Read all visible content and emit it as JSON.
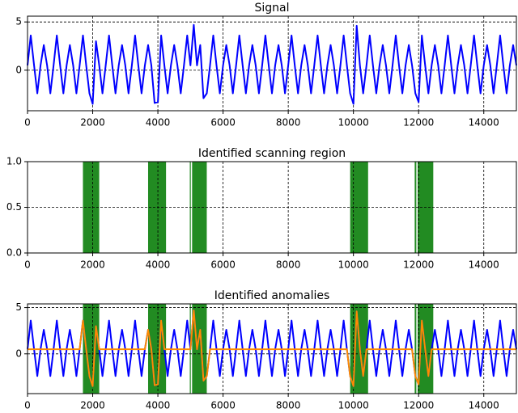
{
  "chart_data": [
    {
      "type": "line",
      "title": "Signal",
      "x": [
        0,
        100,
        200,
        300,
        400,
        500,
        600,
        700,
        800,
        900,
        1000,
        1100,
        1200,
        1300,
        1400,
        1500,
        1600,
        1700,
        1800,
        1900,
        2000,
        2100,
        2200,
        2300,
        2400,
        2500,
        2600,
        2700,
        2800,
        2900,
        3000,
        3100,
        3200,
        3300,
        3400,
        3500,
        3600,
        3700,
        3800,
        3900,
        4000,
        4100,
        4200,
        4300,
        4400,
        4500,
        4600,
        4700,
        4800,
        4900,
        5000,
        5100,
        5200,
        5300,
        5400,
        5500,
        5600,
        5700,
        5800,
        5900,
        6000,
        6100,
        6200,
        6300,
        6400,
        6500,
        6600,
        6700,
        6800,
        6900,
        7000,
        7100,
        7200,
        7300,
        7400,
        7500,
        7600,
        7700,
        7800,
        7900,
        8000,
        8100,
        8200,
        8300,
        8400,
        8500,
        8600,
        8700,
        8800,
        8900,
        9000,
        9100,
        9200,
        9300,
        9400,
        9500,
        9600,
        9700,
        9800,
        9900,
        10000,
        10100,
        10200,
        10300,
        10400,
        10500,
        10600,
        10700,
        10800,
        10900,
        11000,
        11100,
        11200,
        11300,
        11400,
        11500,
        11600,
        11700,
        11800,
        11900,
        12000,
        12100,
        12200,
        12300,
        12400,
        12500,
        12600,
        12700,
        12800,
        12900,
        13000,
        13100,
        13200,
        13300,
        13400,
        13500,
        13600,
        13700,
        13800,
        13900,
        14000,
        14100,
        14200,
        14300,
        14400,
        14500,
        14600,
        14700,
        14800,
        14900,
        15000
      ],
      "series": [
        {
          "color": "#0000ff",
          "values": [
            0.5,
            3.6,
            0.5,
            -2.4,
            0.5,
            2.6,
            0.5,
            -2.4,
            0.5,
            3.6,
            0.5,
            -2.4,
            0.5,
            2.6,
            0.5,
            -2.4,
            0.5,
            3.6,
            0.5,
            -2.4,
            -3.5,
            3.0,
            0.5,
            -2.4,
            0.5,
            3.6,
            0.5,
            -2.4,
            0.5,
            2.6,
            0.5,
            -2.4,
            0.5,
            3.6,
            0.5,
            -2.4,
            0.5,
            2.6,
            0.5,
            -3.4,
            -3.3,
            3.6,
            0.5,
            -2.4,
            0.5,
            2.6,
            0.5,
            -2.4,
            0.5,
            3.6,
            0.5,
            4.7,
            0.5,
            2.6,
            -2.9,
            -2.4,
            0.5,
            3.6,
            0.5,
            -2.4,
            0.5,
            2.6,
            0.5,
            -2.4,
            0.5,
            3.6,
            0.5,
            -2.4,
            0.5,
            2.6,
            0.5,
            -2.4,
            0.5,
            3.6,
            0.5,
            -2.4,
            0.5,
            2.6,
            0.5,
            -2.4,
            0.5,
            3.6,
            0.5,
            -2.4,
            0.5,
            2.6,
            0.5,
            -2.4,
            0.5,
            3.6,
            0.5,
            -2.4,
            0.5,
            2.6,
            0.5,
            -2.4,
            0.5,
            3.6,
            0.5,
            -2.4,
            -3.5,
            4.6,
            0.5,
            -2.4,
            0.5,
            3.6,
            0.5,
            -2.4,
            0.5,
            2.6,
            0.5,
            -2.4,
            0.5,
            3.6,
            0.5,
            -2.4,
            0.5,
            2.6,
            0.5,
            -2.4,
            -3.3,
            3.6,
            0.5,
            -2.4,
            0.5,
            2.6,
            0.5,
            -2.4,
            0.5,
            3.6,
            0.5,
            -2.4,
            0.5,
            2.6,
            0.5,
            -2.4,
            0.5,
            3.6,
            0.5,
            -2.4,
            0.5,
            2.6,
            0.5,
            -2.4,
            0.5,
            3.6,
            0.5,
            -2.4,
            0.5,
            2.6,
            0.5
          ]
        }
      ],
      "xlim": [
        0,
        15000
      ],
      "xticks": [
        0,
        2000,
        4000,
        6000,
        8000,
        10000,
        12000,
        14000
      ],
      "ylim": [
        -4.2,
        5.6
      ],
      "yticks": [
        0,
        5
      ],
      "grid": true
    },
    {
      "type": "span",
      "title": "Identified scanning region",
      "spans": [
        [
          1700,
          2200
        ],
        [
          3700,
          4250
        ],
        [
          4980,
          5010
        ],
        [
          5050,
          5500
        ],
        [
          9900,
          10450
        ],
        [
          11880,
          11930
        ],
        [
          11970,
          12450
        ]
      ],
      "span_color": "#228b22",
      "xlim": [
        0,
        15000
      ],
      "xticks": [
        0,
        2000,
        4000,
        6000,
        8000,
        10000,
        12000,
        14000
      ],
      "ylim": [
        0,
        1
      ],
      "yticks": [
        {
          "value": 0,
          "label": "0.0"
        },
        0.5,
        {
          "value": 1,
          "label": "1.0"
        }
      ],
      "grid": true
    },
    {
      "type": "line",
      "title": "Identified anomalies",
      "spans": [
        [
          1700,
          2200
        ],
        [
          3700,
          4250
        ],
        [
          4980,
          5010
        ],
        [
          5050,
          5500
        ],
        [
          9900,
          10450
        ],
        [
          11880,
          11930
        ],
        [
          11970,
          12450
        ]
      ],
      "span_color": "#228b22",
      "x": [
        0,
        100,
        200,
        300,
        400,
        500,
        600,
        700,
        800,
        900,
        1000,
        1100,
        1200,
        1300,
        1400,
        1500,
        1600,
        1700,
        1800,
        1900,
        2000,
        2100,
        2200,
        2300,
        2400,
        2500,
        2600,
        2700,
        2800,
        2900,
        3000,
        3100,
        3200,
        3300,
        3400,
        3500,
        3600,
        3700,
        3800,
        3900,
        4000,
        4100,
        4200,
        4300,
        4400,
        4500,
        4600,
        4700,
        4800,
        4900,
        5000,
        5100,
        5200,
        5300,
        5400,
        5500,
        5600,
        5700,
        5800,
        5900,
        6000,
        6100,
        6200,
        6300,
        6400,
        6500,
        6600,
        6700,
        6800,
        6900,
        7000,
        7100,
        7200,
        7300,
        7400,
        7500,
        7600,
        7700,
        7800,
        7900,
        8000,
        8100,
        8200,
        8300,
        8400,
        8500,
        8600,
        8700,
        8800,
        8900,
        9000,
        9100,
        9200,
        9300,
        9400,
        9500,
        9600,
        9700,
        9800,
        9900,
        10000,
        10100,
        10200,
        10300,
        10400,
        10500,
        10600,
        10700,
        10800,
        10900,
        11000,
        11100,
        11200,
        11300,
        11400,
        11500,
        11600,
        11700,
        11800,
        11900,
        12000,
        12100,
        12200,
        12300,
        12400,
        12500,
        12600,
        12700,
        12800,
        12900,
        13000,
        13100,
        13200,
        13300,
        13400,
        13500,
        13600,
        13700,
        13800,
        13900,
        14000,
        14100,
        14200,
        14300,
        14400,
        14500,
        14600,
        14700,
        14800,
        14900,
        15000
      ],
      "series": [
        {
          "color": "#0000ff",
          "values": [
            0.5,
            3.6,
            0.5,
            -2.4,
            0.5,
            2.6,
            0.5,
            -2.4,
            0.5,
            3.6,
            0.5,
            -2.4,
            0.5,
            2.6,
            0.5,
            -2.4,
            0.5,
            3.6,
            0.5,
            -2.4,
            -3.5,
            3.0,
            0.5,
            -2.4,
            0.5,
            3.6,
            0.5,
            -2.4,
            0.5,
            2.6,
            0.5,
            -2.4,
            0.5,
            3.6,
            0.5,
            -2.4,
            0.5,
            2.6,
            0.5,
            -3.4,
            -3.3,
            3.6,
            0.5,
            -2.4,
            0.5,
            2.6,
            0.5,
            -2.4,
            0.5,
            3.6,
            0.5,
            4.7,
            0.5,
            2.6,
            -2.9,
            -2.4,
            0.5,
            3.6,
            0.5,
            -2.4,
            0.5,
            2.6,
            0.5,
            -2.4,
            0.5,
            3.6,
            0.5,
            -2.4,
            0.5,
            2.6,
            0.5,
            -2.4,
            0.5,
            3.6,
            0.5,
            -2.4,
            0.5,
            2.6,
            0.5,
            -2.4,
            0.5,
            3.6,
            0.5,
            -2.4,
            0.5,
            2.6,
            0.5,
            -2.4,
            0.5,
            3.6,
            0.5,
            -2.4,
            0.5,
            2.6,
            0.5,
            -2.4,
            0.5,
            3.6,
            0.5,
            -2.4,
            -3.5,
            4.6,
            0.5,
            -2.4,
            0.5,
            3.6,
            0.5,
            -2.4,
            0.5,
            2.6,
            0.5,
            -2.4,
            0.5,
            3.6,
            0.5,
            -2.4,
            0.5,
            2.6,
            0.5,
            -2.4,
            -3.3,
            3.6,
            0.5,
            -2.4,
            0.5,
            2.6,
            0.5,
            -2.4,
            0.5,
            3.6,
            0.5,
            -2.4,
            0.5,
            2.6,
            0.5,
            -2.4,
            0.5,
            3.6,
            0.5,
            -2.4,
            0.5,
            2.6,
            0.5,
            -2.4,
            0.5,
            3.6,
            0.5,
            -2.4,
            0.5,
            2.6,
            0.5
          ]
        },
        {
          "color": "#ff8c00",
          "values": [
            0.5,
            0.5,
            0.5,
            0.5,
            0.5,
            0.5,
            0.5,
            0.5,
            0.5,
            0.5,
            0.5,
            0.5,
            0.5,
            0.5,
            0.5,
            0.5,
            0.5,
            3.6,
            0.5,
            -2.4,
            -3.5,
            3.0,
            0.5,
            0.5,
            0.5,
            0.5,
            0.5,
            0.5,
            0.5,
            0.5,
            0.5,
            0.5,
            0.5,
            0.5,
            0.5,
            0.5,
            0.5,
            2.6,
            0.5,
            -3.4,
            -3.3,
            3.6,
            0.5,
            0.5,
            0.5,
            0.5,
            0.5,
            0.5,
            0.5,
            0.5,
            0.5,
            4.7,
            0.5,
            2.6,
            -2.9,
            -2.4,
            0.5,
            0.5,
            0.5,
            0.5,
            0.5,
            0.5,
            0.5,
            0.5,
            0.5,
            0.5,
            0.5,
            0.5,
            0.5,
            0.5,
            0.5,
            0.5,
            0.5,
            0.5,
            0.5,
            0.5,
            0.5,
            0.5,
            0.5,
            0.5,
            0.5,
            0.5,
            0.5,
            0.5,
            0.5,
            0.5,
            0.5,
            0.5,
            0.5,
            0.5,
            0.5,
            0.5,
            0.5,
            0.5,
            0.5,
            0.5,
            0.5,
            0.5,
            0.5,
            -2.4,
            -3.5,
            4.6,
            0.5,
            -2.4,
            0.5,
            0.5,
            0.5,
            0.5,
            0.5,
            0.5,
            0.5,
            0.5,
            0.5,
            0.5,
            0.5,
            0.5,
            0.5,
            0.5,
            0.5,
            -2.4,
            -3.3,
            3.6,
            0.5,
            -2.4,
            0.5,
            0.5,
            0.5,
            0.5,
            0.5,
            0.5,
            0.5,
            0.5,
            0.5,
            0.5,
            0.5,
            0.5,
            0.5,
            0.5,
            0.5,
            0.5,
            0.5,
            0.5,
            0.5,
            0.5,
            0.5,
            0.5,
            0.5,
            0.5,
            0.5,
            0.5,
            0.5
          ]
        }
      ],
      "xlim": [
        0,
        15000
      ],
      "xticks": [
        0,
        2000,
        4000,
        6000,
        8000,
        10000,
        12000,
        14000
      ],
      "ylim": [
        -4.3,
        5.4
      ],
      "yticks": [
        0,
        5
      ],
      "grid": true
    }
  ]
}
